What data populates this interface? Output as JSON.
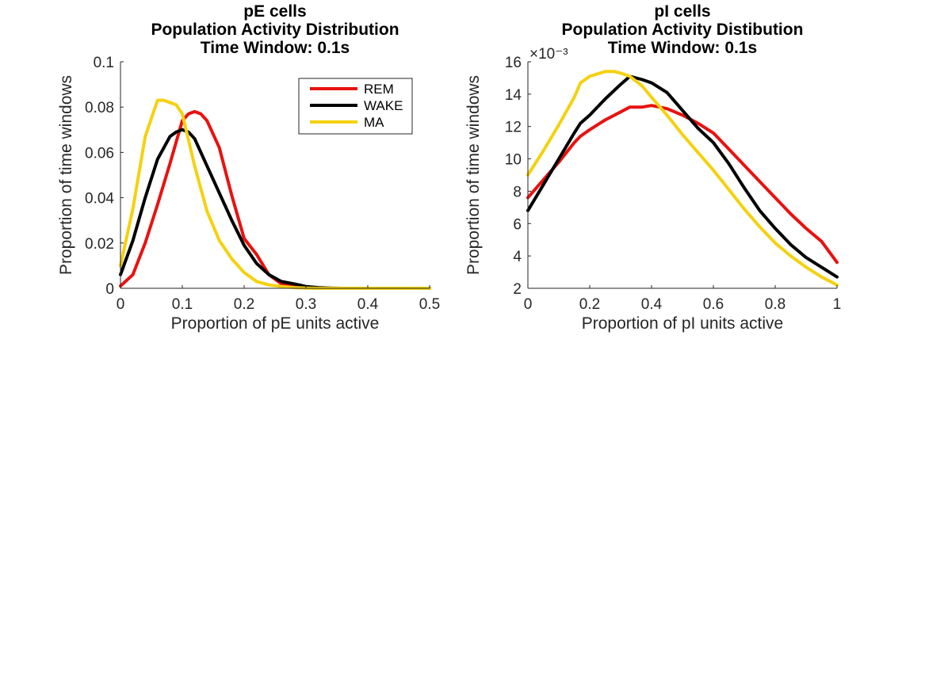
{
  "chart_data": [
    {
      "type": "line",
      "title": [
        "pE cells",
        "Population Activity Distribution",
        "Time Window: 0.1s"
      ],
      "xlabel": "Proportion of pE units active",
      "ylabel": "Proportion of time windows",
      "xlim": [
        0,
        0.5
      ],
      "ylim": [
        0,
        0.1
      ],
      "xticks": [
        0,
        0.1,
        0.2,
        0.3,
        0.4,
        0.5
      ],
      "xtick_labels": [
        "0",
        "0.1",
        "0.2",
        "0.3",
        "0.4",
        "0.5"
      ],
      "yticks": [
        0,
        0.02,
        0.04,
        0.06,
        0.08,
        0.1
      ],
      "ytick_labels": [
        "0",
        "0.02",
        "0.04",
        "0.06",
        "0.08",
        "0.1"
      ],
      "exponent_label": "",
      "grid": false,
      "legend": {
        "show": true,
        "placement": "top-right"
      },
      "series": [
        {
          "name": "REM",
          "color": "#e8120f",
          "x": [
            0,
            0.02,
            0.04,
            0.06,
            0.08,
            0.1,
            0.11,
            0.12,
            0.13,
            0.14,
            0.16,
            0.18,
            0.2,
            0.22,
            0.24,
            0.26,
            0.28,
            0.3,
            0.32,
            0.34,
            0.36,
            0.4,
            0.45,
            0.5
          ],
          "y": [
            0.001,
            0.006,
            0.02,
            0.037,
            0.055,
            0.074,
            0.077,
            0.078,
            0.077,
            0.074,
            0.062,
            0.041,
            0.022,
            0.015,
            0.006,
            0.002,
            0.0008,
            0.0003,
            0.0001,
            0,
            0,
            0,
            0,
            0
          ]
        },
        {
          "name": "WAKE",
          "color": "#000000",
          "x": [
            0,
            0.02,
            0.04,
            0.06,
            0.08,
            0.09,
            0.1,
            0.11,
            0.12,
            0.14,
            0.16,
            0.18,
            0.2,
            0.22,
            0.24,
            0.26,
            0.28,
            0.3,
            0.32,
            0.34,
            0.36,
            0.4,
            0.45,
            0.5
          ],
          "y": [
            0.006,
            0.021,
            0.04,
            0.057,
            0.067,
            0.069,
            0.07,
            0.069,
            0.066,
            0.054,
            0.042,
            0.03,
            0.019,
            0.011,
            0.006,
            0.003,
            0.002,
            0.0008,
            0.0003,
            0.0001,
            0,
            0,
            0,
            0
          ]
        },
        {
          "name": "MA",
          "color": "#f5d10f",
          "x": [
            0,
            0.02,
            0.04,
            0.06,
            0.07,
            0.08,
            0.09,
            0.1,
            0.12,
            0.14,
            0.16,
            0.18,
            0.2,
            0.22,
            0.24,
            0.26,
            0.28,
            0.3,
            0.32,
            0.34,
            0.36,
            0.4,
            0.45,
            0.5
          ],
          "y": [
            0.01,
            0.035,
            0.067,
            0.083,
            0.083,
            0.082,
            0.081,
            0.077,
            0.054,
            0.034,
            0.021,
            0.013,
            0.007,
            0.003,
            0.0015,
            0.0008,
            0.0003,
            0.0001,
            0,
            0,
            0,
            0,
            0,
            0
          ]
        }
      ]
    },
    {
      "type": "line",
      "title": [
        "pI cells",
        "Population Activity Distibution",
        "Time Window: 0.1s"
      ],
      "xlabel": "Proportion of pI units active",
      "ylabel": "Proportion of time windows",
      "xlim": [
        0,
        1
      ],
      "ylim": [
        0.002,
        0.016
      ],
      "xticks": [
        0,
        0.2,
        0.4,
        0.6,
        0.8,
        1
      ],
      "xtick_labels": [
        "0",
        "0.2",
        "0.4",
        "0.6",
        "0.8",
        "1"
      ],
      "yticks": [
        0.002,
        0.004,
        0.006,
        0.008,
        0.01,
        0.012,
        0.014,
        0.016
      ],
      "ytick_labels": [
        "2",
        "4",
        "6",
        "8",
        "10",
        "12",
        "14",
        "16"
      ],
      "exponent_label": "×10⁻³",
      "grid": false,
      "legend": {
        "show": false,
        "placement": ""
      },
      "series": [
        {
          "name": "REM",
          "color": "#e8120f",
          "x": [
            0,
            0.05,
            0.1,
            0.15,
            0.17,
            0.2,
            0.25,
            0.3,
            0.33,
            0.37,
            0.4,
            0.45,
            0.5,
            0.55,
            0.6,
            0.65,
            0.7,
            0.75,
            0.8,
            0.85,
            0.9,
            0.95,
            1.0
          ],
          "y": [
            0.0076,
            0.0087,
            0.0098,
            0.011,
            0.0114,
            0.0118,
            0.0124,
            0.0129,
            0.0132,
            0.0132,
            0.0133,
            0.0131,
            0.0127,
            0.0122,
            0.0116,
            0.0106,
            0.0096,
            0.0086,
            0.0076,
            0.0066,
            0.0057,
            0.0049,
            0.0036
          ]
        },
        {
          "name": "WAKE",
          "color": "#000000",
          "x": [
            0,
            0.05,
            0.1,
            0.15,
            0.17,
            0.2,
            0.25,
            0.3,
            0.33,
            0.37,
            0.4,
            0.45,
            0.5,
            0.55,
            0.6,
            0.65,
            0.7,
            0.75,
            0.8,
            0.85,
            0.9,
            0.95,
            1.0
          ],
          "y": [
            0.0068,
            0.0084,
            0.01,
            0.0116,
            0.0122,
            0.0127,
            0.0137,
            0.0146,
            0.0151,
            0.0149,
            0.0147,
            0.0141,
            0.013,
            0.0119,
            0.011,
            0.0097,
            0.0082,
            0.0068,
            0.0057,
            0.0047,
            0.0039,
            0.0033,
            0.0027
          ]
        },
        {
          "name": "MA",
          "color": "#f5d10f",
          "x": [
            0,
            0.05,
            0.1,
            0.15,
            0.17,
            0.2,
            0.25,
            0.28,
            0.3,
            0.33,
            0.37,
            0.4,
            0.45,
            0.5,
            0.55,
            0.6,
            0.65,
            0.7,
            0.75,
            0.8,
            0.85,
            0.9,
            0.95,
            1.0
          ],
          "y": [
            0.009,
            0.0105,
            0.0121,
            0.0138,
            0.0147,
            0.0151,
            0.0154,
            0.0154,
            0.0153,
            0.0151,
            0.0145,
            0.0138,
            0.0127,
            0.0115,
            0.0104,
            0.0093,
            0.0081,
            0.0069,
            0.0058,
            0.0048,
            0.004,
            0.0033,
            0.0027,
            0.0022
          ]
        }
      ]
    }
  ]
}
